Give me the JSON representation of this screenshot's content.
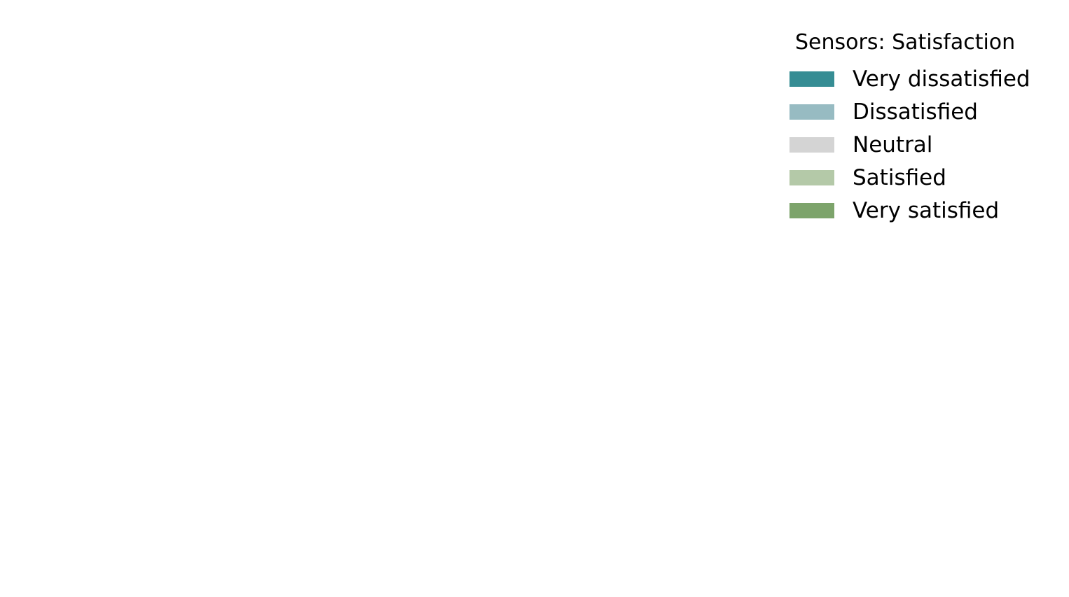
{
  "chart_data": {
    "type": "bar",
    "title": "",
    "xlabel": "",
    "ylabel": "",
    "categories": [],
    "series": [
      {
        "name": "Very dissatisfied",
        "color": "#368d94",
        "values": []
      },
      {
        "name": "Dissatisfied",
        "color": "#97bbc2",
        "values": []
      },
      {
        "name": "Neutral",
        "color": "#d4d4d4",
        "values": []
      },
      {
        "name": "Satisfied",
        "color": "#b4c9a8",
        "values": []
      },
      {
        "name": "Very satisfied",
        "color": "#7da46b",
        "values": []
      }
    ],
    "legend": {
      "title": "Sensors: Satisfaction",
      "placement": "top-right"
    },
    "grid": false
  }
}
